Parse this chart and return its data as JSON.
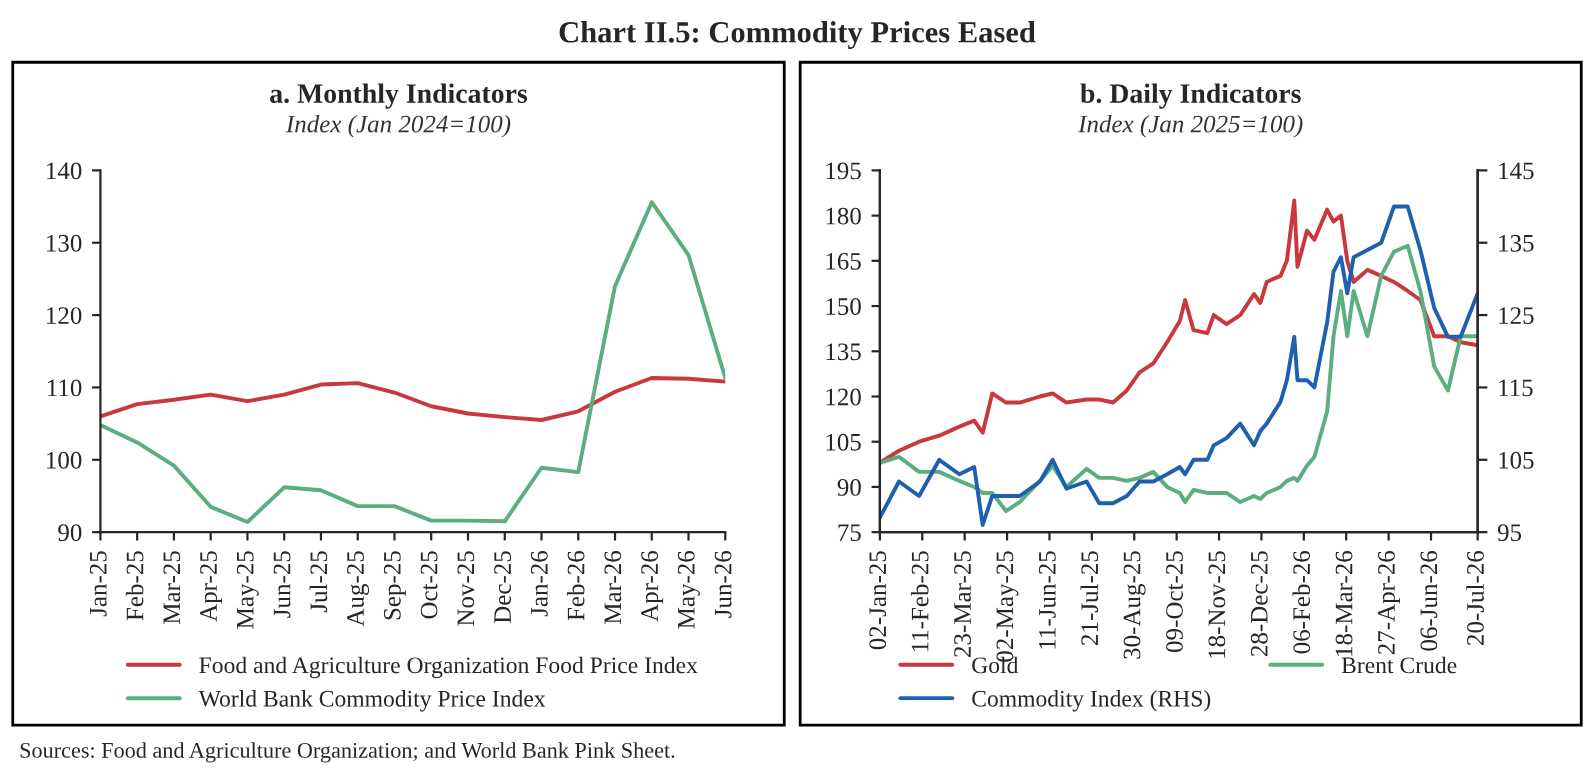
{
  "chart_data": [
    {
      "type": "line",
      "title": "a. Monthly Indicators",
      "subtitle": "Index (Jan 2024=100)",
      "annotations": [
        "Chart II.5: Commodity Prices Eased"
      ],
      "categories": [
        "Jan-25",
        "Feb-25",
        "Mar-25",
        "Apr-25",
        "May-25",
        "Jun-25",
        "Jul-25",
        "Aug-25",
        "Sep-25",
        "Oct-25",
        "Nov-25",
        "Dec-25",
        "Jan-26",
        "Feb-26",
        "Mar-26",
        "Apr-26",
        "May-26",
        "Jun-26"
      ],
      "series": [
        {
          "name": "Food and Agriculture Organization Food Price Index",
          "color": "#c8383c",
          "values": [
            106,
            107.7,
            108.3,
            109,
            108.1,
            109,
            110.4,
            110.6,
            109.3,
            107.4,
            106.4,
            105.9,
            105.5,
            106.7,
            109.4,
            111.3,
            111.2,
            110.8
          ]
        },
        {
          "name": "World Bank Commodity Price Index",
          "color": "#5aae7f",
          "values": [
            104.8,
            102.4,
            99.2,
            93.5,
            91.4,
            96.2,
            95.8,
            93.6,
            93.6,
            91.6,
            91.6,
            91.5,
            98.9,
            98.3,
            124,
            135.6,
            128.3,
            111.3
          ]
        }
      ],
      "ylim": [
        90,
        140
      ],
      "yticks": [
        90,
        100,
        110,
        120,
        130,
        140
      ],
      "grid": false,
      "legend": "bottom",
      "marker": "none",
      "line_style": "solid"
    },
    {
      "type": "line",
      "title": "b. Daily Indicators",
      "subtitle": "Index (Jan 2025=100)",
      "annotations": [
        "Sources: Food and Agriculture Organization; and World Bank Pink Sheet."
      ],
      "x": [
        "2025-01-02",
        "2025-01-20",
        "2025-02-08",
        "2025-02-27",
        "2025-03-18",
        "2025-04-01",
        "2025-04-09",
        "2025-04-18",
        "2025-05-01",
        "2025-05-14",
        "2025-06-02",
        "2025-06-14",
        "2025-06-27",
        "2025-07-16",
        "2025-07-28",
        "2025-08-10",
        "2025-08-23",
        "2025-09-04",
        "2025-09-17",
        "2025-09-30",
        "2025-10-12",
        "2025-10-17",
        "2025-10-25",
        "2025-11-07",
        "2025-11-13",
        "2025-11-25",
        "2025-12-08",
        "2025-12-21",
        "2025-12-27",
        "2026-01-02",
        "2026-01-15",
        "2026-01-21",
        "2026-01-28",
        "2026-01-31",
        "2026-02-09",
        "2026-02-16",
        "2026-02-28",
        "2026-03-06",
        "2026-03-13",
        "2026-03-19",
        "2026-03-25",
        "2026-04-07",
        "2026-04-20",
        "2026-05-02",
        "2026-05-15",
        "2026-05-27",
        "2026-06-09",
        "2026-06-22",
        "2026-07-04",
        "2026-07-20"
      ],
      "series": [
        {
          "name": "Gold",
          "color": "#c8383c",
          "values": [
            98,
            102,
            105,
            107,
            110,
            112,
            108,
            121,
            118,
            118,
            120,
            121,
            118,
            119,
            119,
            118,
            122,
            128,
            131,
            138,
            145,
            152,
            142,
            141,
            147,
            144,
            147,
            154,
            151,
            158,
            160,
            165,
            185,
            163,
            175,
            172,
            182,
            178,
            180,
            165,
            158,
            162,
            160,
            158,
            155,
            152,
            140,
            140,
            138,
            137
          ]
        },
        {
          "name": "Commodity Index (RHS)",
          "color": "#1f5fb0",
          "axis": "y2",
          "values": [
            97,
            102,
            100,
            105,
            103,
            104,
            96,
            100,
            100,
            100,
            102,
            105,
            101,
            102,
            99,
            99,
            100,
            102,
            102,
            103,
            104,
            103,
            105,
            105,
            107,
            108,
            110,
            107,
            109,
            110,
            113,
            116,
            122,
            116,
            116,
            115,
            124,
            131,
            133,
            128,
            133,
            134,
            135,
            140,
            140,
            134,
            126,
            122,
            122,
            128
          ]
        },
        {
          "name": "Brent Crude",
          "color": "#5aae7f",
          "values": [
            98,
            100,
            95,
            95,
            92,
            90,
            88,
            88,
            82,
            85,
            92,
            97,
            90,
            96,
            93,
            93,
            92,
            93,
            95,
            90,
            88,
            85,
            89,
            88,
            88,
            88,
            85,
            87,
            86,
            88,
            90,
            92,
            93,
            92,
            97,
            100,
            115,
            140,
            155,
            140,
            155,
            140,
            160,
            168,
            170,
            155,
            130,
            122,
            140,
            140
          ]
        }
      ],
      "xlim": [
        "2025-01-02",
        "2026-07-20"
      ],
      "xticks": [
        {
          "value": "2025-01-02",
          "label": "02-Jan-25"
        },
        {
          "value": "2025-02-11",
          "label": "11-Feb-25"
        },
        {
          "value": "2025-03-23",
          "label": "23-Mar-25"
        },
        {
          "value": "2025-05-02",
          "label": "02-May-25"
        },
        {
          "value": "2025-06-11",
          "label": "11-Jun-25"
        },
        {
          "value": "2025-07-21",
          "label": "21-Jul-25"
        },
        {
          "value": "2025-08-30",
          "label": "30-Aug-25"
        },
        {
          "value": "2025-10-09",
          "label": "09-Oct-25"
        },
        {
          "value": "2025-11-18",
          "label": "18-Nov-25"
        },
        {
          "value": "2025-12-28",
          "label": "28-Dec-25"
        },
        {
          "value": "2026-02-06",
          "label": "06-Feb-26"
        },
        {
          "value": "2026-03-18",
          "label": "18-Mar-26"
        },
        {
          "value": "2026-04-27",
          "label": "27-Apr-26"
        },
        {
          "value": "2026-06-06",
          "label": "06-Jun-26"
        },
        {
          "value": "2026-07-20",
          "label": "20-Jul-26"
        }
      ],
      "ylim": [
        75,
        195
      ],
      "yticks": [
        75,
        90,
        105,
        120,
        135,
        150,
        165,
        180,
        195
      ],
      "y2lim": [
        95,
        145
      ],
      "y2ticks": [
        95,
        105,
        115,
        125,
        135,
        145
      ],
      "grid": false,
      "legend": "bottom",
      "marker": "none",
      "line_style": "solid"
    }
  ]
}
